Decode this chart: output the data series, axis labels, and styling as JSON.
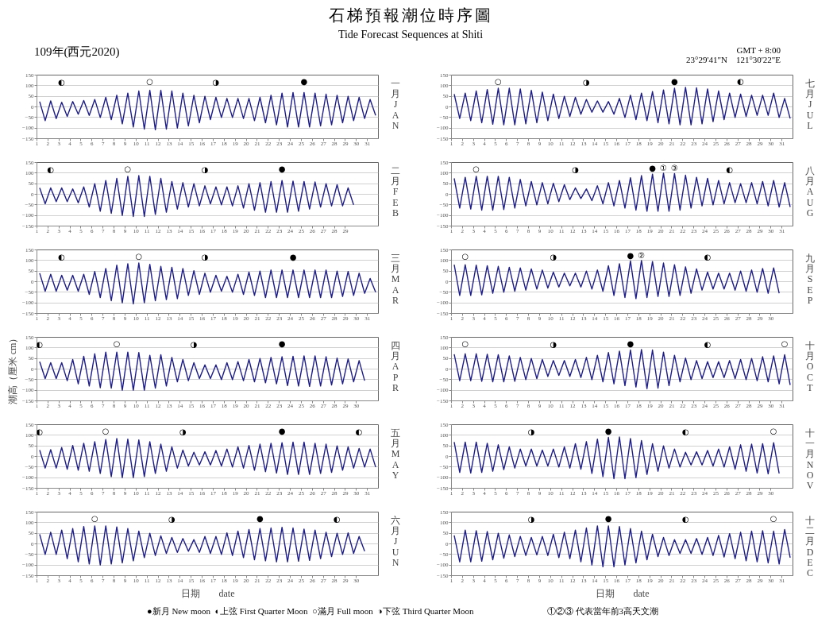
{
  "chart_data": [
    {
      "type": "line",
      "title": "石梯預報潮位時序圖",
      "subtitle": "Tide Forecast Sequences at Shiti",
      "y2label": "一月 JAN",
      "color": "#1c1c8c",
      "xlim": [
        1,
        32
      ],
      "ylim": [
        -150,
        150
      ],
      "xticks": [
        1,
        2,
        3,
        4,
        5,
        6,
        7,
        8,
        9,
        10,
        11,
        12,
        13,
        14,
        15,
        16,
        17,
        18,
        19,
        20,
        21,
        22,
        23,
        24,
        25,
        26,
        27,
        28,
        29,
        30,
        31
      ],
      "yticks": [
        -150,
        -100,
        -50,
        0,
        50,
        100,
        150
      ],
      "grid": "y",
      "x": [
        1.25,
        1.75,
        2.25,
        2.75,
        3.25,
        3.75,
        4.25,
        4.75,
        5.25,
        5.75,
        6.25,
        6.75,
        7.25,
        7.75,
        8.25,
        8.75,
        9.25,
        9.75,
        10.25,
        10.75,
        11.25,
        11.75,
        12.25,
        12.75,
        13.25,
        13.75,
        14.25,
        14.75,
        15.25,
        15.75,
        16.25,
        16.75,
        17.25,
        17.75,
        18.25,
        18.75,
        19.25,
        19.75,
        20.25,
        20.75,
        21.25,
        21.75,
        22.25,
        22.75,
        23.25,
        23.75,
        24.25,
        24.75,
        25.25,
        25.75,
        26.25,
        26.75,
        27.25,
        27.75,
        28.25,
        28.75,
        29.25,
        29.75,
        30.25,
        30.75,
        31.25,
        31.75
      ],
      "values": [
        25,
        -65,
        28,
        -55,
        22,
        -45,
        25,
        -35,
        30,
        -40,
        35,
        -50,
        45,
        -60,
        55,
        -80,
        65,
        -95,
        75,
        -105,
        78,
        -108,
        78,
        -105,
        75,
        -100,
        65,
        -90,
        55,
        -75,
        50,
        -60,
        45,
        -50,
        40,
        -50,
        40,
        -55,
        40,
        -65,
        45,
        -75,
        55,
        -85,
        65,
        -95,
        68,
        -95,
        68,
        -95,
        65,
        -90,
        60,
        -85,
        55,
        -75,
        50,
        -65,
        45,
        -55,
        35,
        -40
      ],
      "annotations": [
        "109年(西元2020)",
        {
          "text": "◐",
          "x": 3.25,
          "y": 22
        },
        {
          "text": "○",
          "x": 11.25,
          "y": 78
        },
        {
          "text": "◑",
          "x": 17.25,
          "y": 45
        },
        {
          "text": "●",
          "x": 25.25,
          "y": 68
        }
      ]
    },
    {
      "type": "line",
      "y2label": "二月 FEB",
      "color": "#1c1c8c",
      "xlim": [
        1,
        32
      ],
      "ylim": [
        -150,
        150
      ],
      "xticks": [
        1,
        2,
        3,
        4,
        5,
        6,
        7,
        8,
        9,
        10,
        11,
        12,
        13,
        14,
        15,
        16,
        17,
        18,
        19,
        20,
        21,
        22,
        23,
        24,
        25,
        26,
        27,
        28,
        29
      ],
      "yticks": [
        -150,
        -100,
        -50,
        0,
        50,
        100,
        150
      ],
      "grid": "y",
      "x": [
        1.25,
        1.75,
        2.25,
        2.75,
        3.25,
        3.75,
        4.25,
        4.75,
        5.25,
        5.75,
        6.25,
        6.75,
        7.25,
        7.75,
        8.25,
        8.75,
        9.25,
        9.75,
        10.25,
        10.75,
        11.25,
        11.75,
        12.25,
        12.75,
        13.25,
        13.75,
        14.25,
        14.75,
        15.25,
        15.75,
        16.25,
        16.75,
        17.25,
        17.75,
        18.25,
        18.75,
        19.25,
        19.75,
        20.25,
        20.75,
        21.25,
        21.75,
        22.25,
        22.75,
        23.25,
        23.75,
        24.25,
        24.75,
        25.25,
        25.75,
        26.25,
        26.75,
        27.25,
        27.75,
        28.25,
        28.75,
        29.25,
        29.75
      ],
      "values": [
        30,
        -45,
        30,
        -35,
        30,
        -35,
        25,
        -40,
        35,
        -60,
        50,
        -80,
        65,
        -90,
        75,
        -100,
        85,
        -105,
        88,
        -105,
        85,
        -95,
        75,
        -85,
        60,
        -70,
        55,
        -60,
        50,
        -55,
        40,
        -45,
        35,
        -50,
        35,
        -55,
        40,
        -65,
        50,
        -75,
        55,
        -85,
        60,
        -85,
        65,
        -85,
        62,
        -80,
        60,
        -70,
        58,
        -60,
        50,
        -55,
        45,
        -55,
        30,
        -50
      ],
      "annotations": [
        {
          "text": "◐",
          "x": 2.25,
          "y": 30
        },
        {
          "text": "○",
          "x": 9.25,
          "y": 85
        },
        {
          "text": "◑",
          "x": 16.25,
          "y": 40
        },
        {
          "text": "●",
          "x": 23.25,
          "y": 65
        }
      ]
    },
    {
      "type": "line",
      "y2label": "三月 MAR",
      "color": "#1c1c8c",
      "xlim": [
        1,
        32
      ],
      "ylim": [
        -150,
        150
      ],
      "xticks": [
        1,
        2,
        3,
        4,
        5,
        6,
        7,
        8,
        9,
        10,
        11,
        12,
        13,
        14,
        15,
        16,
        17,
        18,
        19,
        20,
        21,
        22,
        23,
        24,
        25,
        26,
        27,
        28,
        29,
        30,
        31
      ],
      "yticks": [
        -150,
        -100,
        -50,
        0,
        50,
        100,
        150
      ],
      "grid": "y",
      "x": [
        1.25,
        1.75,
        2.25,
        2.75,
        3.25,
        3.75,
        4.25,
        4.75,
        5.25,
        5.75,
        6.25,
        6.75,
        7.25,
        7.75,
        8.25,
        8.75,
        9.25,
        9.75,
        10.25,
        10.75,
        11.25,
        11.75,
        12.25,
        12.75,
        13.25,
        13.75,
        14.25,
        14.75,
        15.25,
        15.75,
        16.25,
        16.75,
        17.25,
        17.75,
        18.25,
        18.75,
        19.25,
        19.75,
        20.25,
        20.75,
        21.25,
        21.75,
        22.25,
        22.75,
        23.25,
        23.75,
        24.25,
        24.75,
        25.25,
        25.75,
        26.25,
        26.75,
        27.25,
        27.75,
        28.25,
        28.75,
        29.25,
        29.75,
        30.25,
        30.75,
        31.25,
        31.75
      ],
      "values": [
        40,
        -45,
        35,
        -45,
        30,
        -40,
        30,
        -45,
        35,
        -60,
        48,
        -75,
        62,
        -90,
        78,
        -100,
        85,
        -105,
        88,
        -100,
        82,
        -90,
        72,
        -85,
        68,
        -80,
        62,
        -65,
        52,
        -60,
        40,
        -50,
        30,
        -45,
        25,
        -50,
        35,
        -60,
        45,
        -65,
        50,
        -75,
        55,
        -75,
        55,
        -75,
        55,
        -75,
        55,
        -75,
        55,
        -75,
        55,
        -75,
        50,
        -70,
        48,
        -65,
        40,
        -55,
        15,
        -50
      ],
      "annotations": [
        {
          "text": "◐",
          "x": 3.25,
          "y": 30
        },
        {
          "text": "○",
          "x": 10.25,
          "y": 88
        },
        {
          "text": "◑",
          "x": 16.25,
          "y": 40
        },
        {
          "text": "●",
          "x": 24.25,
          "y": 55
        }
      ]
    },
    {
      "type": "line",
      "y2label": "四月 APR",
      "ylabel": "潮高（厘米 cm）",
      "color": "#1c1c8c",
      "xlim": [
        1,
        32
      ],
      "ylim": [
        -150,
        150
      ],
      "xticks": [
        1,
        2,
        3,
        4,
        5,
        6,
        7,
        8,
        9,
        10,
        11,
        12,
        13,
        14,
        15,
        16,
        17,
        18,
        19,
        20,
        21,
        22,
        23,
        24,
        25,
        26,
        27,
        28,
        29,
        30
      ],
      "yticks": [
        -150,
        -100,
        -50,
        0,
        50,
        100,
        150
      ],
      "grid": "y",
      "x": [
        1.25,
        1.75,
        2.25,
        2.75,
        3.25,
        3.75,
        4.25,
        4.75,
        5.25,
        5.75,
        6.25,
        6.75,
        7.25,
        7.75,
        8.25,
        8.75,
        9.25,
        9.75,
        10.25,
        10.75,
        11.25,
        11.75,
        12.25,
        12.75,
        13.25,
        13.75,
        14.25,
        14.75,
        15.25,
        15.75,
        16.25,
        16.75,
        17.25,
        17.75,
        18.25,
        18.75,
        19.25,
        19.75,
        20.25,
        20.75,
        21.25,
        21.75,
        22.25,
        22.75,
        23.25,
        23.75,
        24.25,
        24.75,
        25.25,
        25.75,
        26.25,
        26.75,
        27.25,
        27.75,
        28.25,
        28.75,
        29.25,
        29.75,
        30.25,
        30.75
      ],
      "values": [
        35,
        -45,
        30,
        -45,
        30,
        -55,
        45,
        -70,
        60,
        -80,
        72,
        -88,
        80,
        -90,
        80,
        -100,
        80,
        -100,
        78,
        -100,
        65,
        -90,
        68,
        -80,
        55,
        -60,
        45,
        -55,
        30,
        -45,
        20,
        -45,
        20,
        -50,
        30,
        -50,
        35,
        -55,
        45,
        -60,
        50,
        -65,
        55,
        -70,
        58,
        -78,
        60,
        -80,
        62,
        -82,
        62,
        -80,
        58,
        -75,
        52,
        -70,
        48,
        -60,
        40,
        -55
      ],
      "annotations": [
        {
          "text": "◐",
          "x": 1.25,
          "y": 35
        },
        {
          "text": "○",
          "x": 8.25,
          "y": 80
        },
        {
          "text": "◑",
          "x": 15.25,
          "y": 30
        },
        {
          "text": "●",
          "x": 23.25,
          "y": 58
        }
      ]
    },
    {
      "type": "line",
      "y2label": "五月 MAY",
      "color": "#1c1c8c",
      "xlim": [
        1,
        32
      ],
      "ylim": [
        -150,
        150
      ],
      "xticks": [
        1,
        2,
        3,
        4,
        5,
        6,
        7,
        8,
        9,
        10,
        11,
        12,
        13,
        14,
        15,
        16,
        17,
        18,
        19,
        20,
        21,
        22,
        23,
        24,
        25,
        26,
        27,
        28,
        29,
        30,
        31
      ],
      "yticks": [
        -150,
        -100,
        -50,
        0,
        50,
        100,
        150
      ],
      "grid": "y",
      "x": [
        1.25,
        1.75,
        2.25,
        2.75,
        3.25,
        3.75,
        4.25,
        4.75,
        5.25,
        5.75,
        6.25,
        6.75,
        7.25,
        7.75,
        8.25,
        8.75,
        9.25,
        9.75,
        10.25,
        10.75,
        11.25,
        11.75,
        12.25,
        12.75,
        13.25,
        13.75,
        14.25,
        14.75,
        15.25,
        15.75,
        16.25,
        16.75,
        17.25,
        17.75,
        18.25,
        18.75,
        19.25,
        19.75,
        20.25,
        20.75,
        21.25,
        21.75,
        22.25,
        22.75,
        23.25,
        23.75,
        24.25,
        24.75,
        25.25,
        25.75,
        26.25,
        26.75,
        27.25,
        27.75,
        28.25,
        28.75,
        29.25,
        29.75,
        30.25,
        30.75,
        31.25,
        31.75
      ],
      "values": [
        30,
        -55,
        32,
        -55,
        42,
        -60,
        52,
        -65,
        62,
        -70,
        70,
        -80,
        80,
        -95,
        85,
        -100,
        82,
        -100,
        78,
        -95,
        70,
        -80,
        58,
        -70,
        45,
        -55,
        30,
        -45,
        20,
        -40,
        22,
        -40,
        28,
        -45,
        35,
        -50,
        45,
        -55,
        52,
        -65,
        58,
        -72,
        62,
        -78,
        65,
        -85,
        68,
        -85,
        68,
        -85,
        62,
        -80,
        58,
        -75,
        50,
        -65,
        45,
        -55,
        38,
        -50,
        35,
        -50
      ],
      "annotations": [
        {
          "text": "◐",
          "x": 1.25,
          "y": 30
        },
        {
          "text": "○",
          "x": 7.25,
          "y": 80
        },
        {
          "text": "◑",
          "x": 14.25,
          "y": 30
        },
        {
          "text": "●",
          "x": 23.25,
          "y": 65
        },
        {
          "text": "◐",
          "x": 30.25,
          "y": 38
        }
      ]
    },
    {
      "type": "line",
      "y2label": "六月 JUN",
      "xlabel": "日期　　date",
      "color": "#1c1c8c",
      "xlim": [
        1,
        32
      ],
      "ylim": [
        -150,
        150
      ],
      "xticks": [
        1,
        2,
        3,
        4,
        5,
        6,
        7,
        8,
        9,
        10,
        11,
        12,
        13,
        14,
        15,
        16,
        17,
        18,
        19,
        20,
        21,
        22,
        23,
        24,
        25,
        26,
        27,
        28,
        29,
        30
      ],
      "yticks": [
        -150,
        -100,
        -50,
        0,
        50,
        100,
        150
      ],
      "grid": "y",
      "x": [
        1.25,
        1.75,
        2.25,
        2.75,
        3.25,
        3.75,
        4.25,
        4.75,
        5.25,
        5.75,
        6.25,
        6.75,
        7.25,
        7.75,
        8.25,
        8.75,
        9.25,
        9.75,
        10.25,
        10.75,
        11.25,
        11.75,
        12.25,
        12.75,
        13.25,
        13.75,
        14.25,
        14.75,
        15.25,
        15.75,
        16.25,
        16.75,
        17.25,
        17.75,
        18.25,
        18.75,
        19.25,
        19.75,
        20.25,
        20.75,
        21.25,
        21.75,
        22.25,
        22.75,
        23.25,
        23.75,
        24.25,
        24.75,
        25.25,
        25.75,
        26.25,
        26.75,
        27.25,
        27.75,
        28.25,
        28.75,
        29.25,
        29.75,
        30.25,
        30.75
      ],
      "values": [
        45,
        -50,
        55,
        -50,
        65,
        -70,
        72,
        -85,
        82,
        -95,
        85,
        -100,
        85,
        -95,
        80,
        -90,
        72,
        -80,
        60,
        -65,
        50,
        -55,
        38,
        -45,
        30,
        -40,
        25,
        -35,
        20,
        -40,
        35,
        -45,
        35,
        -50,
        52,
        -55,
        60,
        -65,
        68,
        -75,
        72,
        -80,
        75,
        -85,
        78,
        -85,
        75,
        -82,
        70,
        -78,
        65,
        -70,
        55,
        -60,
        50,
        -50,
        52,
        -45,
        35,
        -35
      ],
      "annotations": [
        {
          "text": "○",
          "x": 6.25,
          "y": 85
        },
        {
          "text": "◑",
          "x": 13.25,
          "y": 30
        },
        {
          "text": "●",
          "x": 21.25,
          "y": 72
        },
        {
          "text": "◐",
          "x": 28.25,
          "y": 50
        }
      ]
    },
    {
      "type": "line",
      "y2label": "七月 JUL",
      "color": "#1c1c8c",
      "xlim": [
        1,
        32
      ],
      "ylim": [
        -150,
        150
      ],
      "xticks": [
        1,
        2,
        3,
        4,
        5,
        6,
        7,
        8,
        9,
        10,
        11,
        12,
        13,
        14,
        15,
        16,
        17,
        18,
        19,
        20,
        21,
        22,
        23,
        24,
        25,
        26,
        27,
        28,
        29,
        30,
        31
      ],
      "yticks": [
        -150,
        -100,
        -50,
        0,
        50,
        100,
        150
      ],
      "grid": "y",
      "x": [
        1.25,
        1.75,
        2.25,
        2.75,
        3.25,
        3.75,
        4.25,
        4.75,
        5.25,
        5.75,
        6.25,
        6.75,
        7.25,
        7.75,
        8.25,
        8.75,
        9.25,
        9.75,
        10.25,
        10.75,
        11.25,
        11.75,
        12.25,
        12.75,
        13.25,
        13.75,
        14.25,
        14.75,
        15.25,
        15.75,
        16.25,
        16.75,
        17.25,
        17.75,
        18.25,
        18.75,
        19.25,
        19.75,
        20.25,
        20.75,
        21.25,
        21.75,
        22.25,
        22.75,
        23.25,
        23.75,
        24.25,
        24.75,
        25.25,
        25.75,
        26.25,
        26.75,
        27.25,
        27.75,
        28.25,
        28.75,
        29.25,
        29.75,
        30.25,
        30.75,
        31.25,
        31.75
      ],
      "values": [
        60,
        -55,
        65,
        -65,
        75,
        -75,
        82,
        -82,
        88,
        -85,
        88,
        -85,
        85,
        -80,
        78,
        -75,
        70,
        -65,
        60,
        -55,
        50,
        -45,
        45,
        -35,
        35,
        -25,
        28,
        -25,
        25,
        -35,
        40,
        -50,
        55,
        -60,
        65,
        -65,
        72,
        -75,
        80,
        -80,
        88,
        -85,
        92,
        -85,
        90,
        -80,
        85,
        -70,
        75,
        -60,
        65,
        -50,
        60,
        -45,
        55,
        -40,
        55,
        -40,
        65,
        -50,
        40,
        -55
      ],
      "annotations": [
        "GMT + 8:00",
        "23°29'41\"N　121°30'22\"E",
        {
          "text": "○",
          "x": 5.25,
          "y": 88
        },
        {
          "text": "◑",
          "x": 13.25,
          "y": 35
        },
        {
          "text": "●",
          "x": 21.25,
          "y": 88
        },
        {
          "text": "◐",
          "x": 27.25,
          "y": 60
        }
      ]
    },
    {
      "type": "line",
      "y2label": "八月 AUG",
      "color": "#1c1c8c",
      "xlim": [
        1,
        32
      ],
      "ylim": [
        -150,
        150
      ],
      "xticks": [
        1,
        2,
        3,
        4,
        5,
        6,
        7,
        8,
        9,
        10,
        11,
        12,
        13,
        14,
        15,
        16,
        17,
        18,
        19,
        20,
        21,
        22,
        23,
        24,
        25,
        26,
        27,
        28,
        29,
        30,
        31
      ],
      "yticks": [
        -150,
        -100,
        -50,
        0,
        50,
        100,
        150
      ],
      "grid": "y",
      "x": [
        1.25,
        1.75,
        2.25,
        2.75,
        3.25,
        3.75,
        4.25,
        4.75,
        5.25,
        5.75,
        6.25,
        6.75,
        7.25,
        7.75,
        8.25,
        8.75,
        9.25,
        9.75,
        10.25,
        10.75,
        11.25,
        11.75,
        12.25,
        12.75,
        13.25,
        13.75,
        14.25,
        14.75,
        15.25,
        15.75,
        16.25,
        16.75,
        17.25,
        17.75,
        18.25,
        18.75,
        19.25,
        19.75,
        20.25,
        20.75,
        21.25,
        21.75,
        22.25,
        22.75,
        23.25,
        23.75,
        24.25,
        24.75,
        25.25,
        25.75,
        26.25,
        26.75,
        27.25,
        27.75,
        28.25,
        28.75,
        29.25,
        29.75,
        30.25,
        30.75,
        31.25,
        31.75
      ],
      "values": [
        75,
        -65,
        80,
        -70,
        85,
        -75,
        85,
        -75,
        85,
        -72,
        80,
        -65,
        70,
        -55,
        60,
        -50,
        55,
        -45,
        52,
        -35,
        45,
        -25,
        30,
        -20,
        25,
        -30,
        40,
        -45,
        55,
        -55,
        65,
        -65,
        78,
        -75,
        88,
        -80,
        95,
        -80,
        100,
        -80,
        98,
        -75,
        90,
        -65,
        80,
        -55,
        75,
        -50,
        65,
        -45,
        55,
        -40,
        50,
        -40,
        55,
        -45,
        60,
        -55,
        65,
        -60,
        55,
        -60
      ],
      "annotations": [
        {
          "text": "○",
          "x": 3.25,
          "y": 85
        },
        {
          "text": "◑",
          "x": 12.25,
          "y": 30
        },
        {
          "text": "●",
          "x": 19.25,
          "y": 95
        },
        {
          "text": "◐",
          "x": 26.25,
          "y": 55
        },
        {
          "text": "①",
          "x": 20.25,
          "y": 100
        },
        {
          "text": "③",
          "x": 21.25,
          "y": 98
        }
      ]
    },
    {
      "type": "line",
      "y2label": "九月 SEP",
      "color": "#1c1c8c",
      "xlim": [
        1,
        32
      ],
      "ylim": [
        -150,
        150
      ],
      "xticks": [
        1,
        2,
        3,
        4,
        5,
        6,
        7,
        8,
        9,
        10,
        11,
        12,
        13,
        14,
        15,
        16,
        17,
        18,
        19,
        20,
        21,
        22,
        23,
        24,
        25,
        26,
        27,
        28,
        29,
        30
      ],
      "yticks": [
        -150,
        -100,
        -50,
        0,
        50,
        100,
        150
      ],
      "grid": "y",
      "x": [
        1.25,
        1.75,
        2.25,
        2.75,
        3.25,
        3.75,
        4.25,
        4.75,
        5.25,
        5.75,
        6.25,
        6.75,
        7.25,
        7.75,
        8.25,
        8.75,
        9.25,
        9.75,
        10.25,
        10.75,
        11.25,
        11.75,
        12.25,
        12.75,
        13.25,
        13.75,
        14.25,
        14.75,
        15.25,
        15.75,
        16.25,
        16.75,
        17.25,
        17.75,
        18.25,
        18.75,
        19.25,
        19.75,
        20.25,
        20.75,
        21.25,
        21.75,
        22.25,
        22.75,
        23.25,
        23.75,
        24.25,
        24.75,
        25.25,
        25.75,
        26.25,
        26.75,
        27.25,
        27.75,
        28.25,
        28.75,
        29.25,
        29.75,
        30.25,
        30.75
      ],
      "values": [
        80,
        -65,
        80,
        -65,
        78,
        -62,
        75,
        -55,
        72,
        -50,
        68,
        -45,
        65,
        -40,
        60,
        -35,
        55,
        -30,
        45,
        -25,
        40,
        -20,
        40,
        -25,
        50,
        -35,
        55,
        -45,
        75,
        -65,
        85,
        -75,
        98,
        -80,
        100,
        -75,
        95,
        -70,
        88,
        -70,
        80,
        -65,
        70,
        -55,
        60,
        -40,
        45,
        -35,
        40,
        -35,
        40,
        -40,
        50,
        -45,
        55,
        -50,
        62,
        -55,
        65,
        -55
      ],
      "annotations": [
        {
          "text": "○",
          "x": 2.25,
          "y": 80
        },
        {
          "text": "◑",
          "x": 10.25,
          "y": 45
        },
        {
          "text": "●",
          "x": 17.25,
          "y": 98
        },
        {
          "text": "◐",
          "x": 24.25,
          "y": 45
        },
        {
          "text": "②",
          "x": 18.25,
          "y": 100
        }
      ]
    },
    {
      "type": "line",
      "y2label": "十月 OCT",
      "color": "#1c1c8c",
      "xlim": [
        1,
        32
      ],
      "ylim": [
        -150,
        150
      ],
      "xticks": [
        1,
        2,
        3,
        4,
        5,
        6,
        7,
        8,
        9,
        10,
        11,
        12,
        13,
        14,
        15,
        16,
        17,
        18,
        19,
        20,
        21,
        22,
        23,
        24,
        25,
        26,
        27,
        28,
        29,
        30,
        31
      ],
      "yticks": [
        -150,
        -100,
        -50,
        0,
        50,
        100,
        150
      ],
      "grid": "y",
      "x": [
        1.25,
        1.75,
        2.25,
        2.75,
        3.25,
        3.75,
        4.25,
        4.75,
        5.25,
        5.75,
        6.25,
        6.75,
        7.25,
        7.75,
        8.25,
        8.75,
        9.25,
        9.75,
        10.25,
        10.75,
        11.25,
        11.75,
        12.25,
        12.75,
        13.25,
        13.75,
        14.25,
        14.75,
        15.25,
        15.75,
        16.25,
        16.75,
        17.25,
        17.75,
        18.25,
        18.75,
        19.25,
        19.75,
        20.25,
        20.75,
        21.25,
        21.75,
        22.25,
        22.75,
        23.25,
        23.75,
        24.25,
        24.75,
        25.25,
        25.75,
        26.25,
        26.75,
        27.25,
        27.75,
        28.25,
        28.75,
        29.25,
        29.75,
        30.25,
        30.75,
        31.25,
        31.75
      ],
      "values": [
        70,
        -55,
        72,
        -55,
        72,
        -58,
        70,
        -60,
        68,
        -60,
        62,
        -58,
        55,
        -50,
        50,
        -45,
        45,
        -35,
        40,
        -30,
        40,
        -35,
        45,
        -40,
        55,
        -50,
        65,
        -60,
        78,
        -70,
        85,
        -78,
        90,
        -85,
        92,
        -92,
        90,
        -90,
        80,
        -78,
        65,
        -60,
        52,
        -50,
        40,
        -45,
        35,
        -40,
        35,
        -40,
        40,
        -45,
        45,
        -50,
        50,
        -55,
        58,
        -60,
        62,
        -70,
        68,
        -75
      ],
      "annotations": [
        {
          "text": "○",
          "x": 2.25,
          "y": 72
        },
        {
          "text": "◑",
          "x": 10.25,
          "y": 40
        },
        {
          "text": "●",
          "x": 17.25,
          "y": 90
        },
        {
          "text": "◐",
          "x": 24.25,
          "y": 35
        },
        {
          "text": "○",
          "x": 31.25,
          "y": 68
        }
      ]
    },
    {
      "type": "line",
      "y2label": "十一月 NOV",
      "color": "#1c1c8c",
      "xlim": [
        1,
        32
      ],
      "ylim": [
        -150,
        150
      ],
      "xticks": [
        1,
        2,
        3,
        4,
        5,
        6,
        7,
        8,
        9,
        10,
        11,
        12,
        13,
        14,
        15,
        16,
        17,
        18,
        19,
        20,
        21,
        22,
        23,
        24,
        25,
        26,
        27,
        28,
        29,
        30
      ],
      "yticks": [
        -150,
        -100,
        -50,
        0,
        50,
        100,
        150
      ],
      "grid": "y",
      "x": [
        1.25,
        1.75,
        2.25,
        2.75,
        3.25,
        3.75,
        4.25,
        4.75,
        5.25,
        5.75,
        6.25,
        6.75,
        7.25,
        7.75,
        8.25,
        8.75,
        9.25,
        9.75,
        10.25,
        10.75,
        11.25,
        11.75,
        12.25,
        12.75,
        13.25,
        13.75,
        14.25,
        14.75,
        15.25,
        15.75,
        16.25,
        16.75,
        17.25,
        17.75,
        18.25,
        18.75,
        19.25,
        19.75,
        20.25,
        20.75,
        21.25,
        21.75,
        22.25,
        22.75,
        23.25,
        23.75,
        24.25,
        24.75,
        25.25,
        25.75,
        26.25,
        26.75,
        27.25,
        27.75,
        28.25,
        28.75,
        29.25,
        29.75,
        30.25,
        30.75
      ],
      "values": [
        68,
        -75,
        68,
        -78,
        68,
        -75,
        62,
        -70,
        55,
        -62,
        45,
        -55,
        35,
        -45,
        35,
        -45,
        30,
        -45,
        35,
        -50,
        45,
        -55,
        60,
        -60,
        70,
        -80,
        82,
        -95,
        90,
        -105,
        92,
        -105,
        85,
        -100,
        75,
        -85,
        60,
        -70,
        50,
        -55,
        35,
        -50,
        20,
        -40,
        22,
        -40,
        28,
        -45,
        35,
        -50,
        45,
        -60,
        55,
        -70,
        58,
        -78,
        60,
        -82,
        65,
        -80
      ],
      "annotations": [
        {
          "text": "◑",
          "x": 8.25,
          "y": 35
        },
        {
          "text": "●",
          "x": 15.25,
          "y": 90
        },
        {
          "text": "◐",
          "x": 22.25,
          "y": 20
        },
        {
          "text": "○",
          "x": 30.25,
          "y": 65
        }
      ]
    },
    {
      "type": "line",
      "y2label": "十二月 DEC",
      "xlabel": "日期　　date",
      "color": "#1c1c8c",
      "xlim": [
        1,
        32
      ],
      "ylim": [
        -150,
        150
      ],
      "xticks": [
        1,
        2,
        3,
        4,
        5,
        6,
        7,
        8,
        9,
        10,
        11,
        12,
        13,
        14,
        15,
        16,
        17,
        18,
        19,
        20,
        21,
        22,
        23,
        24,
        25,
        26,
        27,
        28,
        29,
        30,
        31
      ],
      "yticks": [
        -150,
        -100,
        -50,
        0,
        50,
        100,
        150
      ],
      "grid": "y",
      "x": [
        1.25,
        1.75,
        2.25,
        2.75,
        3.25,
        3.75,
        4.25,
        4.75,
        5.25,
        5.75,
        6.25,
        6.75,
        7.25,
        7.75,
        8.25,
        8.75,
        9.25,
        9.75,
        10.25,
        10.75,
        11.25,
        11.75,
        12.25,
        12.75,
        13.25,
        13.75,
        14.25,
        14.75,
        15.25,
        15.75,
        16.25,
        16.75,
        17.25,
        17.75,
        18.25,
        18.75,
        19.25,
        19.75,
        20.25,
        20.75,
        21.25,
        21.75,
        22.25,
        22.75,
        23.25,
        23.75,
        24.25,
        24.75,
        25.25,
        25.75,
        26.25,
        26.75,
        27.25,
        27.75,
        28.25,
        28.75,
        29.25,
        29.75,
        30.25,
        30.75,
        31.25,
        31.75
      ],
      "values": [
        40,
        -85,
        65,
        -85,
        62,
        -82,
        58,
        -75,
        50,
        -68,
        42,
        -60,
        35,
        -55,
        30,
        -52,
        35,
        -55,
        45,
        -65,
        55,
        -70,
        65,
        -85,
        75,
        -100,
        85,
        -108,
        85,
        -108,
        82,
        -100,
        72,
        -90,
        60,
        -75,
        45,
        -60,
        30,
        -55,
        20,
        -45,
        20,
        -45,
        25,
        -50,
        30,
        -55,
        40,
        -62,
        48,
        -70,
        55,
        -80,
        60,
        -85,
        62,
        -90,
        60,
        -95,
        68,
        -65
      ],
      "annotations": [
        "●新月 New moon",
        "◐上弦 First Quarter Moon",
        "○滿月 Full moon",
        "◑下弦 Third Quarter Moon",
        "①②③ 代表當年前3高天文潮",
        {
          "text": "◑",
          "x": 8.25,
          "y": 30
        },
        {
          "text": "●",
          "x": 15.25,
          "y": 85
        },
        {
          "text": "◐",
          "x": 22.25,
          "y": 20
        },
        {
          "text": "○",
          "x": 30.25,
          "y": 60
        }
      ]
    }
  ]
}
